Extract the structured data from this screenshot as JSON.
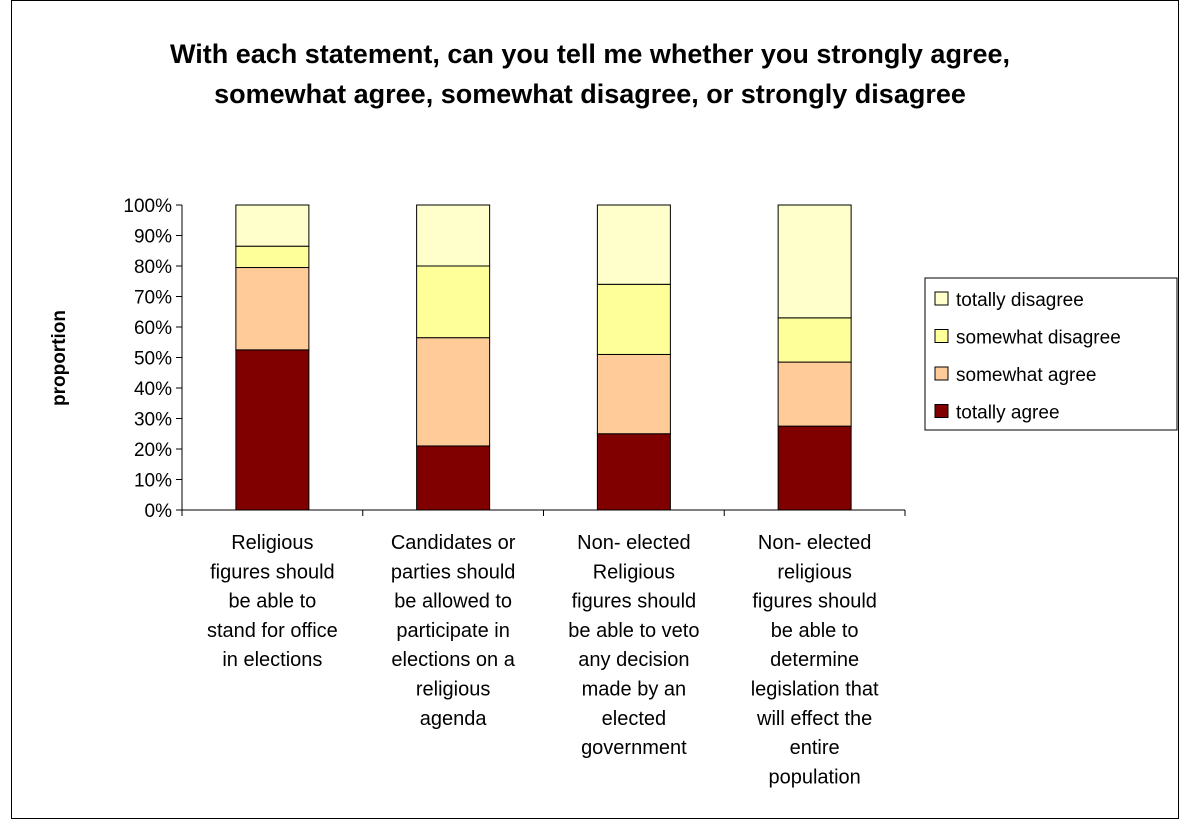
{
  "chart_data": {
    "type": "bar",
    "stacked": true,
    "percent": true,
    "title": "With each statement, can you tell me whether you strongly agree, somewhat agree, somewhat disagree, or strongly disagree",
    "ylabel": "proportion",
    "xlabel": "",
    "ylim": [
      0,
      100
    ],
    "yticks": [
      "0%",
      "10%",
      "20%",
      "30%",
      "40%",
      "50%",
      "60%",
      "70%",
      "80%",
      "90%",
      "100%"
    ],
    "categories": [
      "Religious figures should be able to stand for office in elections",
      "Candidates or parties should be allowed to participate in elections on a religious agenda",
      "Non- elected Religious figures should be able to veto any decision made by an elected government",
      "Non- elected religious figures should be able to determine legislation that will effect the entire population"
    ],
    "category_lines": [
      [
        "Religious",
        "figures should",
        "be able to",
        "stand for office",
        "in elections"
      ],
      [
        "Candidates or",
        "parties should",
        "be allowed to",
        "participate in",
        "elections on a",
        "religious",
        "agenda"
      ],
      [
        "Non- elected",
        "Religious",
        "figures should",
        "be able to veto",
        "any decision",
        "made by an",
        "elected",
        "government"
      ],
      [
        "Non- elected",
        "religious",
        "figures should",
        "be able to",
        "determine",
        "legislation that",
        "will effect the",
        "entire",
        "population"
      ]
    ],
    "series": [
      {
        "name": "totally agree",
        "color": "#800000",
        "values": [
          52.5,
          21,
          25,
          27.5
        ]
      },
      {
        "name": "somewhat agree",
        "color": "#FFCC99",
        "values": [
          27,
          35.5,
          26,
          21
        ]
      },
      {
        "name": "somewhat disagree",
        "color": "#FFFF99",
        "values": [
          7,
          23.5,
          23,
          14.5
        ]
      },
      {
        "name": "totally disagree",
        "color": "#FFFFCC",
        "values": [
          13.5,
          20,
          26,
          37
        ]
      }
    ],
    "legend_order": [
      "totally disagree",
      "somewhat disagree",
      "somewhat agree",
      "totally agree"
    ],
    "legend_position": "right",
    "grid": false
  }
}
